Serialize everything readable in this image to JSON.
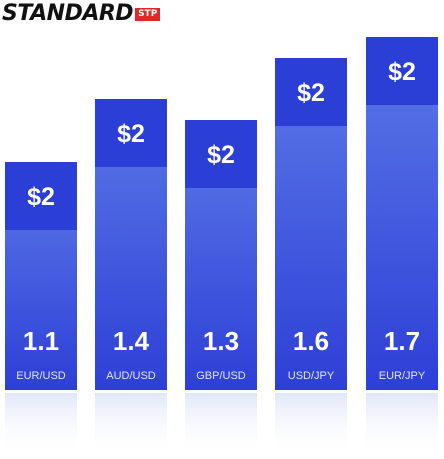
{
  "brand": {
    "name": "STANDARD",
    "badge": "STP"
  },
  "colors": {
    "bar_top": "#2b3ed6",
    "bar_body_light": "#5a78e6",
    "bar_body_dark": "#2f40d8",
    "label_text": "#ffffff",
    "pair_text": "#dfe6ff",
    "brand_badge": "#e3262a"
  },
  "chart_data": {
    "type": "bar",
    "categories": [
      "EUR/USD",
      "AUD/USD",
      "GBP/USD",
      "USD/JPY",
      "EUR/JPY"
    ],
    "values": [
      1.1,
      1.4,
      1.3,
      1.6,
      1.7
    ],
    "top_labels": [
      "$2",
      "$2",
      "$2",
      "$2",
      "$2"
    ],
    "ylim": [
      0,
      1.7
    ]
  }
}
